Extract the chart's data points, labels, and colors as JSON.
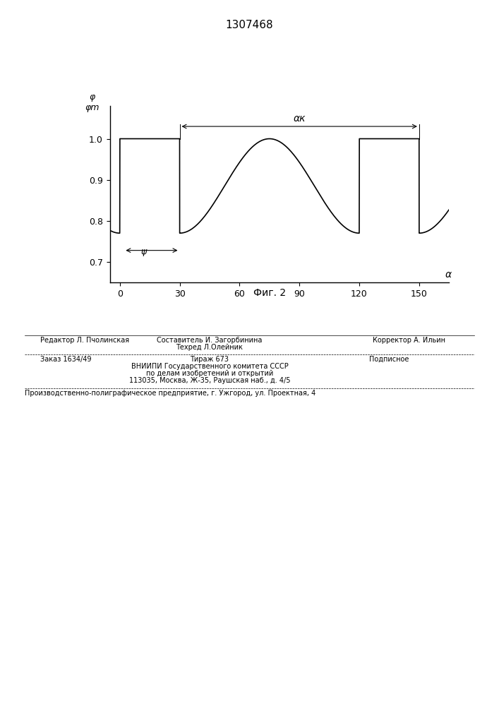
{
  "title": "1307468",
  "fig_label": "Фиг. 2",
  "ylabel": "φ\nφm",
  "xlabel": "α",
  "yticks": [
    0.7,
    0.8,
    0.9,
    1.0
  ],
  "xticks": [
    0,
    30,
    60,
    90,
    120,
    150
  ],
  "xlim": [
    -5,
    165
  ],
  "ylim": [
    0.65,
    1.08
  ],
  "psi_label": "ψ",
  "alphak_label": "αк",
  "bottom_line1": "Редактор Л. Пчолинская",
  "bottom_line1_center": "Техред Л.Олейник",
  "bottom_line1_right": "Корректор А. Ильин",
  "bottom_line2_left": "Заказ 1634/49",
  "bottom_line2_center": "Тираж 673",
  "bottom_line2_right": "Подписное",
  "bottom_line3": "ВНИИПИ Государственного комитета СССР",
  "bottom_line4": "по делам изобретений и открытий",
  "bottom_line5": "113035, Москва, Ж-35, Раушская наб., д. 4/5",
  "bottom_last": "Производственно-полиграфическое предприятие, г. Ужгород, ул. Проектная, 4",
  "составитель": "Составитель И. Загорбинина",
  "line_color": "#000000",
  "bg_color": "#ffffff"
}
